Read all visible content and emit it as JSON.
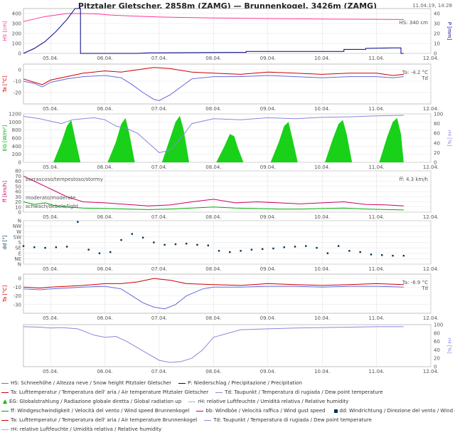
{
  "header": {
    "title": "Pitztaler Gletscher, 2858m (ZAMG) — Brunnenkogel, 3426m (ZAMG)",
    "timestamp": "11.04.19, 14:28"
  },
  "x_dates": [
    "05.04.",
    "06.04.",
    "07.04.",
    "08.04.",
    "09.04.",
    "10.04.",
    "11.04.",
    "12.04."
  ],
  "chart_data": [
    {
      "type": "line",
      "ylabel": "HS [cm]",
      "ylabel_right": "P [mm]",
      "ylim": [
        0,
        450
      ],
      "yticks": [
        0,
        100,
        200,
        300,
        400
      ],
      "ylim_right": [
        0,
        45
      ],
      "yticks_right": [
        0,
        10,
        20,
        30,
        40
      ],
      "label": "HS: 340 cm",
      "series": [
        {
          "name": "HS",
          "color": "#ff3399",
          "axis": "left",
          "x": [
            4.5,
            4.9,
            5.3,
            5.6,
            5.9,
            6.1,
            6.5,
            7.0,
            8.0,
            9.0,
            10.0,
            11.0,
            11.5
          ],
          "values": [
            320,
            370,
            400,
            400,
            395,
            385,
            375,
            365,
            355,
            350,
            345,
            342,
            340
          ]
        },
        {
          "name": "P",
          "color": "#000088",
          "axis": "right",
          "x": [
            4.5,
            4.7,
            4.9,
            5.1,
            5.3,
            5.45,
            5.55,
            5.55,
            6.6,
            6.8,
            8.3,
            8.6,
            8.6,
            9.9,
            10.4,
            10.4,
            10.8,
            10.8,
            11.3,
            11.45,
            11.45,
            11.5
          ],
          "values": [
            0,
            5,
            12,
            22,
            34,
            45,
            45,
            0,
            0,
            0.5,
            1,
            1,
            2,
            2,
            2,
            4,
            4,
            5,
            5.5,
            5.5,
            0,
            0
          ]
        }
      ]
    },
    {
      "type": "line",
      "ylabel": "Ta [°C]",
      "ylim": [
        -30,
        5
      ],
      "yticks": [
        -20,
        -10,
        0
      ],
      "label": "Ta: -4.2 °C",
      "label2": "Td",
      "series": [
        {
          "name": "Ta",
          "color": "#cc0000",
          "x": [
            4.5,
            4.7,
            4.85,
            5.0,
            5.3,
            5.6,
            6.0,
            6.3,
            6.6,
            6.9,
            7.2,
            7.6,
            8.0,
            8.5,
            9.0,
            9.5,
            10.0,
            10.5,
            11.0,
            11.3,
            11.5
          ],
          "values": [
            -8,
            -11,
            -13,
            -9,
            -6,
            -3,
            -1,
            -2,
            0,
            2,
            1,
            -2,
            -3,
            -4,
            -2,
            -3,
            -4,
            -3,
            -3,
            -5,
            -4
          ]
        },
        {
          "name": "Td",
          "color": "#6666dd",
          "x": [
            4.5,
            4.7,
            4.85,
            5.0,
            5.3,
            5.6,
            6.0,
            6.3,
            6.5,
            6.7,
            6.9,
            7.0,
            7.2,
            7.4,
            7.6,
            8.0,
            8.5,
            9.0,
            9.5,
            10.0,
            10.5,
            11.0,
            11.3,
            11.5
          ],
          "values": [
            -10,
            -12,
            -15,
            -11,
            -8,
            -6,
            -5,
            -7,
            -13,
            -20,
            -26,
            -27,
            -22,
            -15,
            -8,
            -6,
            -6,
            -5,
            -6,
            -7,
            -6,
            -6,
            -7,
            -6
          ]
        }
      ]
    },
    {
      "type": "area",
      "ylabel": "EG [W/m²]",
      "ylabel_right": "rH [%]",
      "ylim": [
        0,
        1200
      ],
      "yticks": [
        0,
        200,
        400,
        600,
        800,
        1000,
        1200
      ],
      "ylim_right": [
        0,
        100
      ],
      "yticks_right": [
        0,
        20,
        40,
        60,
        80,
        100
      ],
      "series": [
        {
          "name": "EG",
          "color": "#00cc00",
          "axis": "left",
          "x": [
            4.55,
            4.8,
            5.05,
            5.2,
            5.3,
            5.38,
            5.45,
            5.55,
            5.8,
            6.05,
            6.2,
            6.3,
            6.38,
            6.45,
            6.55,
            6.8,
            7.05,
            7.2,
            7.3,
            7.38,
            7.45,
            7.55,
            7.8,
            8.05,
            8.2,
            8.3,
            8.38,
            8.45,
            8.55,
            8.8,
            9.05,
            9.2,
            9.3,
            9.38,
            9.45,
            9.55,
            9.8,
            10.05,
            10.2,
            10.3,
            10.38,
            10.45,
            10.55,
            10.8,
            11.05,
            11.2,
            11.3,
            11.38,
            11.45,
            11.5
          ],
          "values": [
            0,
            0,
            0,
            500,
            900,
            1050,
            600,
            0,
            0,
            0,
            500,
            950,
            1100,
            700,
            0,
            0,
            0,
            600,
            1000,
            1150,
            800,
            0,
            0,
            0,
            400,
            700,
            650,
            350,
            0,
            0,
            0,
            500,
            900,
            1000,
            600,
            0,
            0,
            0,
            600,
            950,
            1050,
            700,
            0,
            0,
            0,
            650,
            1000,
            1100,
            700,
            0
          ]
        },
        {
          "name": "rH",
          "color": "#8888dd",
          "axis": "right",
          "x": [
            4.5,
            4.8,
            5.0,
            5.2,
            5.4,
            5.6,
            5.8,
            6.0,
            6.2,
            6.4,
            6.6,
            6.8,
            7.0,
            7.2,
            7.4,
            7.6,
            8.0,
            8.5,
            9.0,
            9.5,
            10.0,
            10.5,
            11.0,
            11.5
          ],
          "values": [
            95,
            90,
            85,
            80,
            88,
            90,
            92,
            88,
            75,
            70,
            60,
            40,
            20,
            25,
            50,
            80,
            90,
            88,
            92,
            90,
            93,
            94,
            96,
            97
          ]
        }
      ]
    },
    {
      "type": "line",
      "ylabel": "ff [km/h]",
      "ylim": [
        0,
        80
      ],
      "yticks": [
        0,
        10,
        20,
        30,
        40,
        50,
        60,
        70,
        80
      ],
      "label": "ff: 4.3 km/h",
      "annotations": [
        "burrascoso/tempestoso/stormy",
        "moderato/moderate",
        "schwach/debole/light"
      ],
      "series": [
        {
          "name": "bb",
          "color": "#cc0066",
          "x": [
            4.5,
            4.7,
            4.9,
            5.1,
            5.3,
            5.6,
            6.0,
            6.4,
            6.8,
            7.2,
            7.6,
            8.0,
            8.4,
            8.8,
            9.2,
            9.6,
            10.0,
            10.4,
            10.8,
            11.2,
            11.5
          ],
          "values": [
            70,
            60,
            50,
            40,
            30,
            20,
            18,
            15,
            12,
            14,
            20,
            25,
            18,
            20,
            18,
            16,
            18,
            20,
            15,
            14,
            12
          ]
        },
        {
          "name": "ff",
          "color": "#00aa00",
          "x": [
            4.5,
            4.7,
            4.9,
            5.1,
            5.3,
            5.6,
            6.0,
            6.4,
            6.8,
            7.2,
            7.6,
            8.0,
            8.4,
            8.8,
            9.2,
            9.6,
            10.0,
            10.4,
            10.8,
            11.2,
            11.5
          ],
          "values": [
            20,
            15,
            18,
            12,
            10,
            8,
            7,
            6,
            5,
            6,
            8,
            10,
            8,
            7,
            6,
            6,
            7,
            8,
            6,
            5,
            4.3
          ]
        }
      ]
    },
    {
      "type": "scatter",
      "ylabel": "dd [°]",
      "ylim": [
        0,
        360
      ],
      "yticks_labels": [
        "N",
        "NE",
        "E",
        "SE",
        "S",
        "SW",
        "W",
        "NW",
        "N"
      ],
      "series": [
        {
          "name": "dd",
          "color": "#003355",
          "x": [
            4.5,
            4.7,
            4.9,
            5.1,
            5.3,
            5.5,
            5.7,
            5.9,
            6.1,
            6.3,
            6.5,
            6.7,
            6.9,
            7.1,
            7.3,
            7.5,
            7.7,
            7.9,
            8.1,
            8.3,
            8.5,
            8.7,
            8.9,
            9.1,
            9.3,
            9.5,
            9.7,
            9.9,
            10.1,
            10.3,
            10.5,
            10.7,
            10.9,
            11.1,
            11.3,
            11.5
          ],
          "values": [
            150,
            140,
            135,
            140,
            145,
            350,
            120,
            90,
            100,
            200,
            250,
            220,
            180,
            160,
            165,
            170,
            160,
            155,
            110,
            100,
            110,
            120,
            125,
            130,
            140,
            145,
            150,
            135,
            90,
            150,
            110,
            100,
            80,
            75,
            70,
            70
          ]
        }
      ]
    },
    {
      "type": "line",
      "ylabel": "Ta [°C]",
      "ylim": [
        -40,
        5
      ],
      "yticks": [
        -30,
        -20,
        -10,
        0
      ],
      "label": "Ta: -6.9 °C",
      "label2": "Td",
      "series": [
        {
          "name": "Ta",
          "color": "#cc0000",
          "x": [
            4.5,
            4.8,
            5.0,
            5.3,
            5.6,
            6.0,
            6.3,
            6.6,
            6.9,
            7.2,
            7.5,
            8.0,
            8.5,
            9.0,
            9.5,
            10.0,
            10.5,
            11.0,
            11.5
          ],
          "values": [
            -10,
            -11,
            -10,
            -9,
            -8,
            -6,
            -6,
            -4,
            0,
            -2,
            -6,
            -7,
            -8,
            -6,
            -7,
            -8,
            -7,
            -6,
            -7
          ]
        },
        {
          "name": "Td",
          "color": "#6666dd",
          "x": [
            4.5,
            4.8,
            5.0,
            5.3,
            5.6,
            6.0,
            6.3,
            6.5,
            6.7,
            6.9,
            7.1,
            7.3,
            7.5,
            7.8,
            8.0,
            8.5,
            9.0,
            9.5,
            10.0,
            10.5,
            11.0,
            11.5
          ],
          "values": [
            -12,
            -13,
            -12,
            -11,
            -10,
            -9,
            -12,
            -20,
            -28,
            -33,
            -35,
            -30,
            -20,
            -12,
            -10,
            -10,
            -9,
            -9,
            -10,
            -9,
            -9,
            -10
          ]
        }
      ]
    },
    {
      "type": "line",
      "ylabel_right": "rH [%]",
      "ylim_right": [
        0,
        100
      ],
      "yticks_right": [
        0,
        20,
        40,
        60,
        80,
        100
      ],
      "series": [
        {
          "name": "rH",
          "color": "#8888dd",
          "axis": "right",
          "x": [
            4.5,
            4.8,
            5.0,
            5.2,
            5.5,
            5.8,
            6.0,
            6.2,
            6.4,
            6.6,
            6.8,
            7.0,
            7.2,
            7.4,
            7.6,
            7.8,
            8.0,
            8.5,
            9.0,
            9.5,
            10.0,
            10.5,
            11.0,
            11.5
          ],
          "values": [
            95,
            94,
            92,
            93,
            90,
            75,
            70,
            72,
            60,
            45,
            30,
            15,
            10,
            12,
            20,
            40,
            70,
            88,
            90,
            92,
            93,
            94,
            95,
            95
          ]
        }
      ]
    }
  ],
  "legend": {
    "rows": [
      [
        {
          "kind": "line",
          "color": "#ff3399",
          "text": "HS: Schneehöhe / Altezza neve / Snow height  Pitztaler Gletscher"
        },
        {
          "kind": "line",
          "color": "#000088",
          "text": "P: Niederschlag / Precipitazione / Precipitation"
        }
      ],
      [
        {
          "kind": "line",
          "color": "#cc0000",
          "text": "Ta: Lufttemperatur / Temperatura dell' aria / Air temperature  Pitztaler Gletscher"
        },
        {
          "kind": "line",
          "color": "#8888dd",
          "text": "Td: Taupunkt / Temperatura di rugiada / Dew point temperature"
        }
      ],
      [
        {
          "kind": "tri",
          "color": "#00bb00",
          "text": "EG: Globalstrahlung / Radiazione globale diretta / Global radiation up"
        },
        {
          "kind": "line",
          "color": "#aaaaee",
          "text": "rH: relative Luftfeuchte / Umidità relativa / Relative humidity"
        }
      ],
      [
        {
          "kind": "line",
          "color": "#00aa00",
          "text": "ff: Windgeschwindigkeit / Velocità del vento / Wind speed  Brunnenkogel"
        },
        {
          "kind": "line",
          "color": "#cc0066",
          "text": "bb: Windböe / Velocità raffica / Wind gust speed"
        },
        {
          "kind": "sq",
          "color": "#003355",
          "text": "dd: Windrichtung / Direzione del vento / Wind direction"
        }
      ],
      [
        {
          "kind": "line",
          "color": "#cc0000",
          "text": "Ta: Lufttemperatur / Temperatura dell' aria / Air temperature  Brunnenkogel"
        },
        {
          "kind": "line",
          "color": "#8888dd",
          "text": "Td: Taupunkt / Temperatura di rugiada / Dew point temperature"
        }
      ],
      [
        {
          "kind": "line",
          "color": "#aaaaee",
          "text": "rH: relative Luftfeuchte / Umidità relativa / Relative humidity"
        }
      ]
    ]
  }
}
